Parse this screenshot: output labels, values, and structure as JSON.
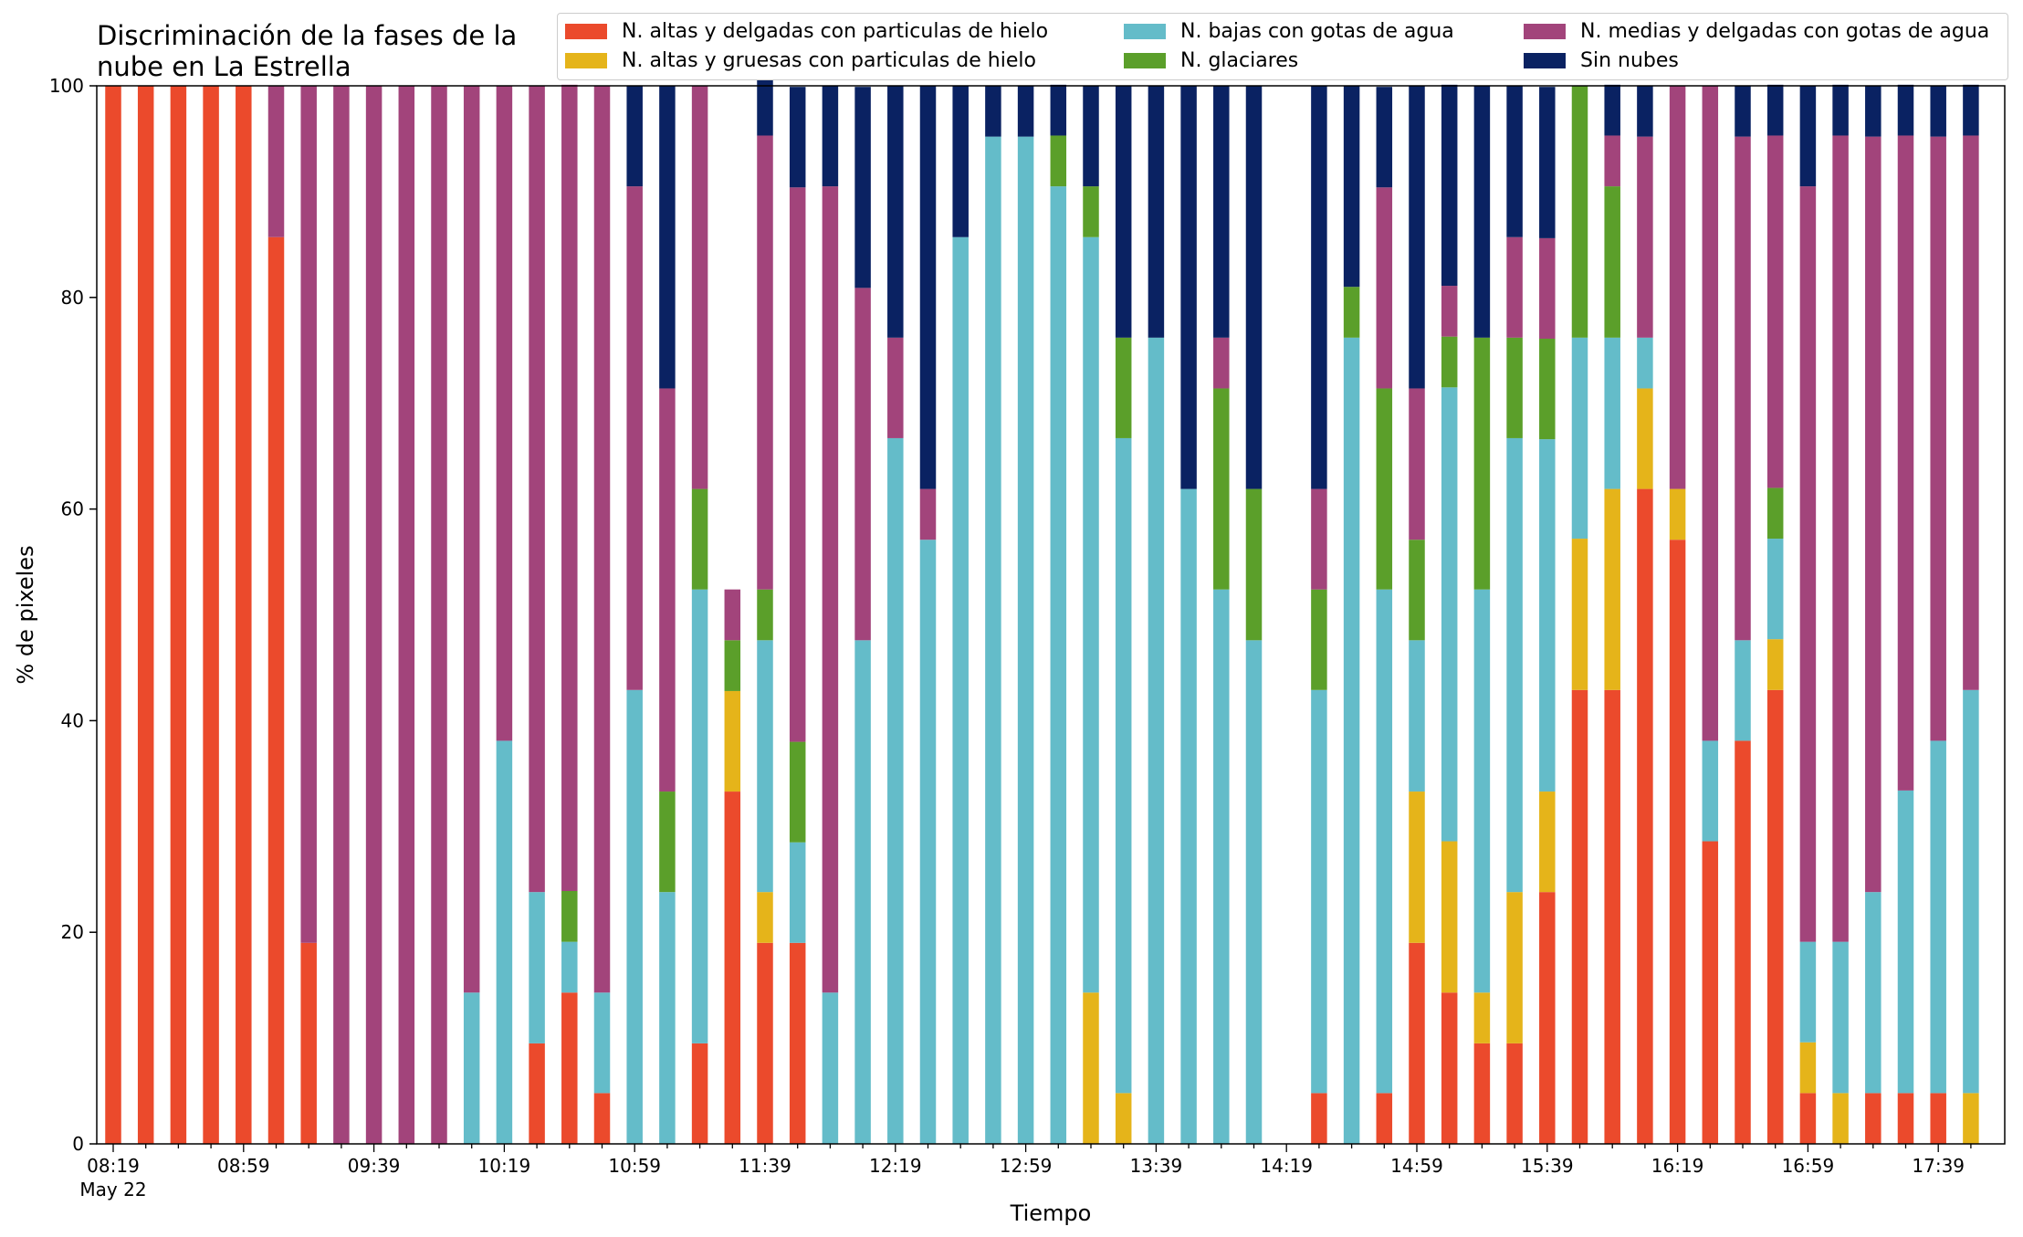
{
  "chart_data": {
    "type": "bar",
    "stacked": true,
    "title": "Discriminación de la fases de la\nnube en La Estrella",
    "xlabel": "Tiempo",
    "ylabel": "% de pixeles",
    "ylim": [
      0,
      100
    ],
    "yticks": [
      "0",
      "20",
      "40",
      "60",
      "80",
      "100"
    ],
    "xticks": [
      {
        "index": 0,
        "label": "08:19",
        "sublabel": "May 22"
      },
      {
        "index": 4,
        "label": "08:59"
      },
      {
        "index": 8,
        "label": "09:39"
      },
      {
        "index": 12,
        "label": "10:19"
      },
      {
        "index": 16,
        "label": "10:59"
      },
      {
        "index": 20,
        "label": "11:39"
      },
      {
        "index": 24,
        "label": "12:19"
      },
      {
        "index": 28,
        "label": "12:59"
      },
      {
        "index": 32,
        "label": "13:39"
      },
      {
        "index": 36,
        "label": "14:19"
      },
      {
        "index": 40,
        "label": "14:59"
      },
      {
        "index": 44,
        "label": "15:39"
      },
      {
        "index": 48,
        "label": "16:19"
      },
      {
        "index": 52,
        "label": "16:59"
      },
      {
        "index": 56,
        "label": "17:39"
      }
    ],
    "categories": [
      "08:19",
      "08:29",
      "08:39",
      "08:49",
      "08:59",
      "09:09",
      "09:19",
      "09:29",
      "09:39",
      "09:49",
      "09:59",
      "10:09",
      "10:19",
      "10:29",
      "10:39",
      "10:49",
      "10:59",
      "11:09",
      "11:19",
      "11:29",
      "11:39",
      "11:49",
      "11:59",
      "12:09",
      "12:19",
      "12:29",
      "12:39",
      "12:49",
      "12:59",
      "13:09",
      "13:19",
      "13:29",
      "13:39",
      "13:49",
      "13:59",
      "14:09",
      "14:19",
      "14:29",
      "14:39",
      "14:49",
      "14:59",
      "15:09",
      "15:19",
      "15:29",
      "15:39",
      "15:49",
      "15:59",
      "16:09",
      "16:19",
      "16:29",
      "16:39",
      "16:49",
      "16:59",
      "17:09",
      "17:19",
      "17:29",
      "17:39",
      "17:49"
    ],
    "legend_position": "top-right",
    "legend_columns": 3,
    "series": [
      {
        "name": "N. altas y delgadas con particulas de hielo",
        "color": "#eb4a2c",
        "values": [
          100,
          100,
          100,
          100,
          100,
          85.7,
          19.0,
          0,
          0,
          0,
          0,
          0,
          0,
          9.5,
          14.3,
          4.8,
          0,
          0,
          9.5,
          33.3,
          19.0,
          19.0,
          0,
          0,
          0,
          0,
          0,
          0,
          0,
          0,
          0,
          0,
          0,
          0,
          0,
          0,
          0,
          4.8,
          0,
          4.8,
          19.0,
          14.3,
          9.5,
          9.5,
          23.8,
          42.9,
          42.9,
          61.9,
          57.1,
          28.6,
          38.1,
          42.9,
          4.8,
          0,
          4.8,
          4.8,
          4.8,
          0
        ]
      },
      {
        "name": "N. altas y gruesas con particulas de hielo",
        "color": "#e5b41a",
        "values": [
          0,
          0,
          0,
          0,
          0,
          0,
          0,
          0,
          0,
          0,
          0,
          0,
          0,
          0,
          0,
          0,
          0,
          0,
          0,
          9.5,
          4.8,
          0,
          0,
          0,
          0,
          0,
          0,
          0,
          0,
          0,
          14.3,
          4.8,
          0,
          0,
          0,
          0,
          0,
          0,
          0,
          0,
          14.3,
          14.3,
          4.8,
          14.3,
          9.5,
          14.3,
          19.0,
          9.5,
          4.8,
          0,
          0,
          4.8,
          4.8,
          4.8,
          0,
          0,
          0,
          4.8
        ]
      },
      {
        "name": "N. bajas con gotas de agua",
        "color": "#64bcc9",
        "values": [
          0,
          0,
          0,
          0,
          0,
          0,
          0,
          0,
          0,
          0,
          0,
          14.3,
          38.1,
          14.3,
          4.8,
          9.5,
          42.9,
          23.8,
          42.9,
          0,
          23.8,
          9.5,
          14.3,
          47.6,
          66.7,
          57.1,
          85.7,
          95.2,
          95.2,
          90.5,
          71.4,
          61.9,
          76.2,
          61.9,
          52.4,
          47.6,
          0,
          38.1,
          76.2,
          47.6,
          14.3,
          42.9,
          38.1,
          42.9,
          33.3,
          19.0,
          14.3,
          4.8,
          0,
          9.5,
          9.5,
          9.5,
          9.5,
          14.3,
          19.0,
          28.6,
          33.3,
          38.1
        ]
      },
      {
        "name": "N. glaciares",
        "color": "#5b9f2a",
        "values": [
          0,
          0,
          0,
          0,
          0,
          0,
          0,
          0,
          0,
          0,
          0,
          0,
          0,
          0,
          4.8,
          0,
          0,
          9.5,
          9.5,
          4.8,
          4.8,
          9.5,
          0,
          0,
          0,
          0,
          0,
          0,
          0,
          4.8,
          4.8,
          9.5,
          0,
          0,
          19.0,
          14.3,
          0,
          9.5,
          4.8,
          19.0,
          9.5,
          4.8,
          23.8,
          9.5,
          9.5,
          23.8,
          14.3,
          0,
          0,
          0,
          0,
          4.8,
          0,
          0,
          0,
          0,
          0,
          0
        ]
      },
      {
        "name": "N. medias y delgadas con gotas de agua",
        "color": "#a2447b",
        "values": [
          0,
          0,
          0,
          0,
          0,
          14.3,
          81.0,
          100,
          100,
          100,
          100,
          85.7,
          61.9,
          76.2,
          76.2,
          85.7,
          47.6,
          38.1,
          38.1,
          4.8,
          42.9,
          52.4,
          76.2,
          33.3,
          9.5,
          4.8,
          0,
          0,
          0,
          0,
          0,
          0,
          0,
          0,
          4.8,
          0,
          0,
          9.5,
          0,
          19.0,
          14.3,
          4.8,
          0,
          9.5,
          9.5,
          0,
          4.8,
          19.0,
          38.1,
          61.9,
          47.6,
          33.3,
          71.4,
          76.2,
          71.4,
          61.9,
          57.1,
          52.4
        ]
      },
      {
        "name": "Sin nubes",
        "color": "#0a2262",
        "values": [
          0,
          0,
          0,
          0,
          0,
          0,
          0,
          0,
          0,
          0,
          0,
          0,
          0,
          0,
          0,
          0,
          9.5,
          28.6,
          0,
          0,
          9.5,
          9.5,
          9.5,
          19.0,
          23.8,
          38.1,
          14.3,
          4.8,
          4.8,
          4.8,
          9.5,
          23.8,
          23.8,
          38.1,
          23.8,
          38.1,
          0,
          38.1,
          19.0,
          9.5,
          28.6,
          19.0,
          23.8,
          14.3,
          14.3,
          0,
          4.8,
          4.8,
          0,
          0,
          4.8,
          4.8,
          9.5,
          4.8,
          4.8,
          4.8,
          4.8,
          4.8
        ]
      }
    ]
  }
}
